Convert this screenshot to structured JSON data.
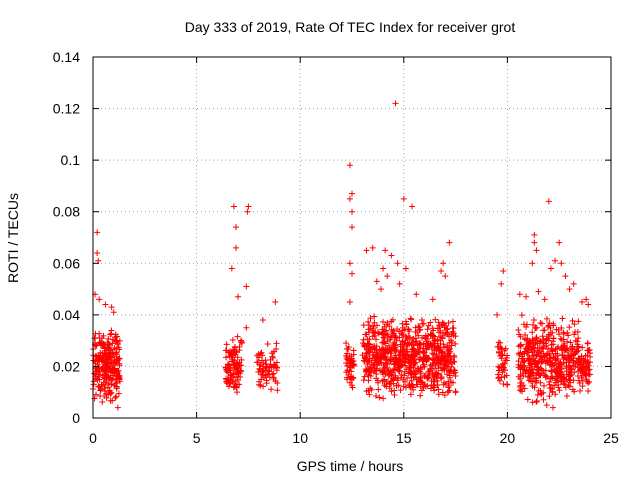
{
  "chart_data": {
    "type": "scatter",
    "title": "Day 333 of 2019, Rate Of TEC Index for receiver grot",
    "xlabel": "GPS time / hours",
    "ylabel": "ROTI / TECUs",
    "xlim": [
      0,
      25
    ],
    "ylim": [
      0,
      0.14
    ],
    "xticks": [
      0,
      5,
      10,
      15,
      20,
      25
    ],
    "yticks": [
      0,
      0.02,
      0.04,
      0.06,
      0.08,
      0.1,
      0.12,
      0.14
    ],
    "xtick_labels": [
      "0",
      "5",
      "10",
      "15",
      "20",
      "25"
    ],
    "ytick_labels": [
      "0",
      "0.02",
      "0.04",
      "0.06",
      "0.08",
      "0.1",
      "0.12",
      "0.14"
    ],
    "grid": true,
    "marker": "+",
    "color": "#ff0000",
    "series": [
      {
        "name": "ROTI",
        "clusters": [
          {
            "x_start": 0.0,
            "x_end": 1.3,
            "y_min": 0.005,
            "y_max": 0.035,
            "n": 260
          },
          {
            "x_start": 6.4,
            "x_end": 7.2,
            "y_min": 0.008,
            "y_max": 0.032,
            "n": 110
          },
          {
            "x_start": 7.9,
            "x_end": 8.9,
            "y_min": 0.009,
            "y_max": 0.03,
            "n": 70
          },
          {
            "x_start": 12.2,
            "x_end": 12.6,
            "y_min": 0.01,
            "y_max": 0.03,
            "n": 50
          },
          {
            "x_start": 13.0,
            "x_end": 17.5,
            "y_min": 0.007,
            "y_max": 0.04,
            "n": 750
          },
          {
            "x_start": 19.5,
            "x_end": 20.0,
            "y_min": 0.01,
            "y_max": 0.03,
            "n": 40
          },
          {
            "x_start": 20.5,
            "x_end": 23.5,
            "y_min": 0.005,
            "y_max": 0.04,
            "n": 450
          },
          {
            "x_start": 23.5,
            "x_end": 24.0,
            "y_min": 0.01,
            "y_max": 0.03,
            "n": 60
          }
        ],
        "outliers": [
          {
            "x": 0.2,
            "y": 0.072
          },
          {
            "x": 0.2,
            "y": 0.064
          },
          {
            "x": 0.25,
            "y": 0.061
          },
          {
            "x": 0.1,
            "y": 0.048
          },
          {
            "x": 0.3,
            "y": 0.046
          },
          {
            "x": 0.6,
            "y": 0.044
          },
          {
            "x": 0.9,
            "y": 0.043
          },
          {
            "x": 1.0,
            "y": 0.041
          },
          {
            "x": 1.2,
            "y": 0.004
          },
          {
            "x": 6.8,
            "y": 0.082
          },
          {
            "x": 6.9,
            "y": 0.074
          },
          {
            "x": 6.9,
            "y": 0.066
          },
          {
            "x": 7.5,
            "y": 0.082
          },
          {
            "x": 7.45,
            "y": 0.08
          },
          {
            "x": 6.7,
            "y": 0.058
          },
          {
            "x": 7.0,
            "y": 0.047
          },
          {
            "x": 7.4,
            "y": 0.051
          },
          {
            "x": 8.8,
            "y": 0.045
          },
          {
            "x": 7.4,
            "y": 0.035
          },
          {
            "x": 8.2,
            "y": 0.038
          },
          {
            "x": 12.4,
            "y": 0.098
          },
          {
            "x": 12.5,
            "y": 0.087
          },
          {
            "x": 12.4,
            "y": 0.085
          },
          {
            "x": 12.5,
            "y": 0.08
          },
          {
            "x": 12.5,
            "y": 0.074
          },
          {
            "x": 12.4,
            "y": 0.06
          },
          {
            "x": 12.5,
            "y": 0.056
          },
          {
            "x": 12.4,
            "y": 0.045
          },
          {
            "x": 14.6,
            "y": 0.122
          },
          {
            "x": 15.0,
            "y": 0.085
          },
          {
            "x": 15.4,
            "y": 0.082
          },
          {
            "x": 13.5,
            "y": 0.066
          },
          {
            "x": 13.2,
            "y": 0.065
          },
          {
            "x": 14.1,
            "y": 0.065
          },
          {
            "x": 14.4,
            "y": 0.063
          },
          {
            "x": 14.7,
            "y": 0.06
          },
          {
            "x": 14.0,
            "y": 0.058
          },
          {
            "x": 14.2,
            "y": 0.055
          },
          {
            "x": 15.1,
            "y": 0.058
          },
          {
            "x": 16.9,
            "y": 0.06
          },
          {
            "x": 17.2,
            "y": 0.068
          },
          {
            "x": 16.8,
            "y": 0.057
          },
          {
            "x": 13.7,
            "y": 0.053
          },
          {
            "x": 17.0,
            "y": 0.055
          },
          {
            "x": 13.9,
            "y": 0.05
          },
          {
            "x": 15.6,
            "y": 0.048
          },
          {
            "x": 16.4,
            "y": 0.046
          },
          {
            "x": 14.8,
            "y": 0.052
          },
          {
            "x": 19.8,
            "y": 0.057
          },
          {
            "x": 19.7,
            "y": 0.052
          },
          {
            "x": 19.5,
            "y": 0.04
          },
          {
            "x": 21.3,
            "y": 0.071
          },
          {
            "x": 21.3,
            "y": 0.068
          },
          {
            "x": 21.4,
            "y": 0.065
          },
          {
            "x": 21.2,
            "y": 0.06
          },
          {
            "x": 22.0,
            "y": 0.084
          },
          {
            "x": 22.5,
            "y": 0.068
          },
          {
            "x": 22.3,
            "y": 0.061
          },
          {
            "x": 22.1,
            "y": 0.058
          },
          {
            "x": 22.6,
            "y": 0.06
          },
          {
            "x": 22.8,
            "y": 0.055
          },
          {
            "x": 23.2,
            "y": 0.052
          },
          {
            "x": 23.0,
            "y": 0.05
          },
          {
            "x": 20.6,
            "y": 0.048
          },
          {
            "x": 20.9,
            "y": 0.047
          },
          {
            "x": 21.5,
            "y": 0.049
          },
          {
            "x": 21.8,
            "y": 0.046
          },
          {
            "x": 23.6,
            "y": 0.045
          },
          {
            "x": 23.8,
            "y": 0.046
          },
          {
            "x": 23.9,
            "y": 0.044
          },
          {
            "x": 22.2,
            "y": 0.004
          },
          {
            "x": 21.9,
            "y": 0.005
          }
        ]
      }
    ]
  }
}
